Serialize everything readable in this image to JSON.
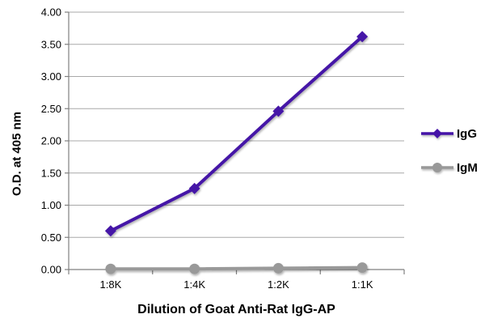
{
  "chart_data": {
    "type": "line",
    "categories": [
      "1:8K",
      "1:4K",
      "1:2K",
      "1:1K"
    ],
    "series": [
      {
        "name": "IgG",
        "values": [
          0.6,
          1.26,
          2.46,
          3.62
        ],
        "color": "#4513A7",
        "marker": "diamond"
      },
      {
        "name": "IgM",
        "values": [
          0.01,
          0.01,
          0.02,
          0.03
        ],
        "color": "#999999",
        "marker": "circle"
      }
    ],
    "title": "",
    "xlabel": "Dilution of Goat Anti-Rat IgG-AP",
    "ylabel": "O.D. at 405 nm",
    "ylim": [
      0,
      4
    ],
    "ytick_step": 0.5,
    "ytick_labels": [
      "0.00",
      "0.50",
      "1.00",
      "1.50",
      "2.00",
      "2.50",
      "3.00",
      "3.50",
      "4.00"
    ],
    "grid": "horizontal",
    "legend_position": "right",
    "colors": {
      "grid": "#A8A8A8",
      "axis": "#808080",
      "text": "#000000",
      "background": "#FFFFFF"
    }
  }
}
